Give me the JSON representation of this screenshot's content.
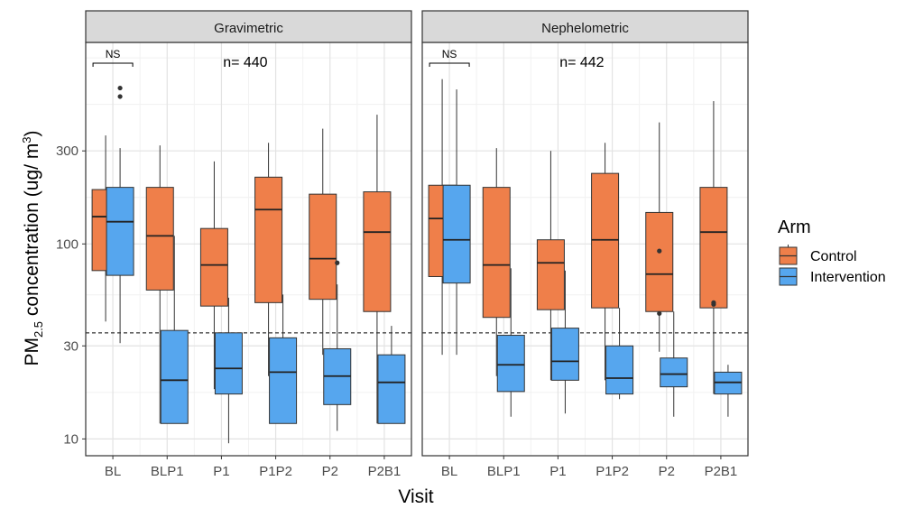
{
  "chart_data": {
    "type": "boxplot",
    "facets": [
      "Gravimetric",
      "Nephelometric"
    ],
    "categories": [
      "BL",
      "BLP1",
      "P1",
      "P1P2",
      "P2",
      "P2B1"
    ],
    "xlabel": "Visit",
    "ylabel": {
      "main": "PM",
      "sub": "2.5",
      "after": " concentration (ug/ m",
      "sup": "3",
      "close": ")"
    },
    "y_scale": "log10",
    "ylim": [
      8.2,
      1080
    ],
    "yticks": [
      10,
      30,
      100,
      300
    ],
    "ytick_labels": [
      "10",
      "30",
      "100",
      "300"
    ],
    "reference_line": 35,
    "legend": {
      "title": "Arm",
      "placement": "right",
      "entries": [
        "Control",
        "Intervention"
      ]
    },
    "colors": {
      "Control": "#ef7f4a",
      "Intervention": "#56a6ee"
    },
    "annotations": [
      {
        "facet": 0,
        "text": "n= 440"
      },
      {
        "facet": 1,
        "text": "n= 442"
      },
      {
        "facet": 0,
        "text": "NS"
      },
      {
        "facet": 1,
        "text": "NS"
      }
    ],
    "series": [
      {
        "name": "Control",
        "boxes": [
          [
            {
              "whisker_low": 40,
              "q1": 73,
              "median": 138,
              "q3": 190,
              "whisker_high": 360,
              "outliers": []
            },
            {
              "whisker_low": 12,
              "q1": 58,
              "median": 110,
              "q3": 195,
              "whisker_high": 320,
              "outliers": []
            },
            {
              "whisker_low": 18,
              "q1": 48,
              "median": 78,
              "q3": 120,
              "whisker_high": 265,
              "outliers": []
            },
            {
              "whisker_low": 21,
              "q1": 50,
              "median": 150,
              "q3": 220,
              "whisker_high": 330,
              "outliers": []
            },
            {
              "whisker_low": 27,
              "q1": 52,
              "median": 84,
              "q3": 180,
              "whisker_high": 390,
              "outliers": []
            },
            {
              "whisker_low": 12,
              "q1": 45,
              "median": 115,
              "q3": 185,
              "whisker_high": 460,
              "outliers": []
            }
          ],
          [
            {
              "whisker_low": 27,
              "q1": 68,
              "median": 135,
              "q3": 200,
              "whisker_high": 700,
              "outliers": []
            },
            {
              "whisker_low": 21,
              "q1": 42,
              "median": 78,
              "q3": 195,
              "whisker_high": 310,
              "outliers": []
            },
            {
              "whisker_low": 20,
              "q1": 46,
              "median": 80,
              "q3": 105,
              "whisker_high": 300,
              "outliers": []
            },
            {
              "whisker_low": 20,
              "q1": 47,
              "median": 105,
              "q3": 230,
              "whisker_high": 330,
              "outliers": []
            },
            {
              "whisker_low": 28,
              "q1": 45,
              "median": 70,
              "q3": 145,
              "whisker_high": 420,
              "outliers": [
                92,
                44
              ]
            },
            {
              "whisker_low": 17,
              "q1": 47,
              "median": 115,
              "q3": 195,
              "whisker_high": 540,
              "outliers": [
                49,
                50
              ]
            }
          ]
        ]
      },
      {
        "name": "Intervention",
        "boxes": [
          [
            {
              "whisker_low": 31,
              "q1": 69,
              "median": 130,
              "q3": 195,
              "whisker_high": 310,
              "outliers": [
                630,
                570
              ]
            },
            {
              "whisker_low": 12,
              "q1": 12,
              "median": 20,
              "q3": 36,
              "whisker_high": 110,
              "outliers": []
            },
            {
              "whisker_low": 9.5,
              "q1": 17,
              "median": 23,
              "q3": 35,
              "whisker_high": 53,
              "outliers": []
            },
            {
              "whisker_low": 12,
              "q1": 12,
              "median": 22,
              "q3": 33,
              "whisker_high": 55,
              "outliers": []
            },
            {
              "whisker_low": 11,
              "q1": 15,
              "median": 21,
              "q3": 29,
              "whisker_high": 62,
              "outliers": [
                80
              ]
            },
            {
              "whisker_low": 12,
              "q1": 12,
              "median": 19.5,
              "q3": 27,
              "whisker_high": 38,
              "outliers": []
            }
          ],
          [
            {
              "whisker_low": 27,
              "q1": 63,
              "median": 105,
              "q3": 200,
              "whisker_high": 620,
              "outliers": []
            },
            {
              "whisker_low": 13,
              "q1": 17.5,
              "median": 24,
              "q3": 34,
              "whisker_high": 75,
              "outliers": []
            },
            {
              "whisker_low": 13.5,
              "q1": 20,
              "median": 25,
              "q3": 37,
              "whisker_high": 73,
              "outliers": []
            },
            {
              "whisker_low": 16,
              "q1": 17,
              "median": 20.5,
              "q3": 30,
              "whisker_high": 47,
              "outliers": []
            },
            {
              "whisker_low": 13,
              "q1": 18.5,
              "median": 21.5,
              "q3": 26,
              "whisker_high": 45,
              "outliers": []
            },
            {
              "whisker_low": 13,
              "q1": 17,
              "median": 19.5,
              "q3": 22,
              "whisker_high": 24,
              "outliers": []
            }
          ]
        ]
      }
    ]
  }
}
